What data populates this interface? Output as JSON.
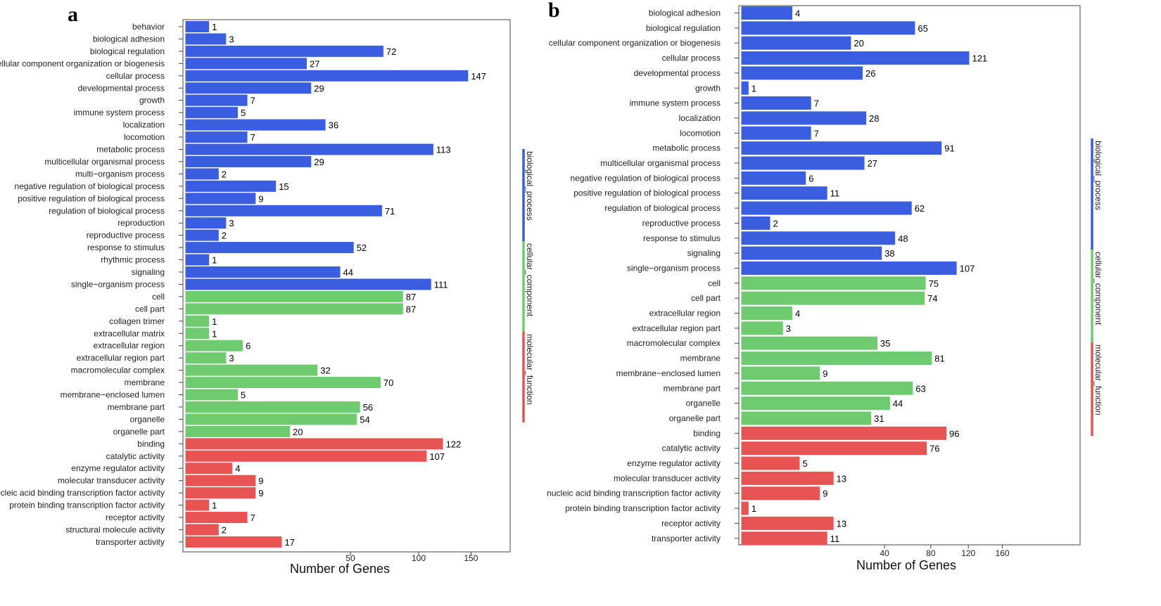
{
  "chart_data": [
    {
      "panel": "a",
      "type": "bar",
      "orientation": "horizontal",
      "xlabel": "Number of Genes",
      "x_ticks": [
        50,
        100,
        150
      ],
      "groups": [
        {
          "name": "biological_process",
          "color": "#3b5ee0",
          "categories": [
            "behavior",
            "biological adhesion",
            "biological regulation",
            "cellular component organization or biogenesis",
            "cellular process",
            "developmental process",
            "growth",
            "immune system process",
            "localization",
            "locomotion",
            "metabolic process",
            "multicellular organismal process",
            "multi−organism process",
            "negative regulation of biological process",
            "positive regulation of biological process",
            "regulation of biological process",
            "reproduction",
            "reproductive process",
            "response to stimulus",
            "rhythmic process",
            "signaling",
            "single−organism process"
          ],
          "values": [
            1,
            3,
            72,
            27,
            147,
            29,
            7,
            5,
            36,
            7,
            113,
            29,
            2,
            15,
            9,
            71,
            3,
            2,
            52,
            1,
            44,
            111
          ]
        },
        {
          "name": "cellular_component",
          "color": "#6fcb6f",
          "categories": [
            "cell",
            "cell part",
            "collagen trimer",
            "extracellular matrix",
            "extracellular region",
            "extracellular region part",
            "macromolecular complex",
            "membrane",
            "membrane−enclosed lumen",
            "membrane part",
            "organelle",
            "organelle part"
          ],
          "values": [
            87,
            87,
            1,
            1,
            6,
            3,
            32,
            70,
            5,
            56,
            54,
            20
          ]
        },
        {
          "name": "molecular_function",
          "color": "#e85454",
          "categories": [
            "binding",
            "catalytic activity",
            "enzyme regulator activity",
            "molecular transducer activity",
            "nucleic acid binding transcription factor activity",
            "protein binding transcription factor activity",
            "receptor activity",
            "structural molecule activity",
            "transporter activity"
          ],
          "values": [
            122,
            107,
            4,
            9,
            9,
            1,
            7,
            2,
            17
          ]
        }
      ]
    },
    {
      "panel": "b",
      "type": "bar",
      "orientation": "horizontal",
      "xlabel": "Number of Genes",
      "x_ticks": [
        40,
        80,
        120,
        160
      ],
      "groups": [
        {
          "name": "biological_process",
          "color": "#3b5ee0",
          "categories": [
            "biological adhesion",
            "biological regulation",
            "cellular component organization or biogenesis",
            "cellular process",
            "developmental process",
            "growth",
            "immune system process",
            "localization",
            "locomotion",
            "metabolic process",
            "multicellular organismal process",
            "negative regulation of biological process",
            "positive regulation of biological process",
            "regulation of biological process",
            "reproductive process",
            "response to stimulus",
            "signaling",
            "single−organism process"
          ],
          "values": [
            4,
            65,
            20,
            121,
            26,
            1,
            7,
            28,
            7,
            91,
            27,
            6,
            11,
            62,
            2,
            48,
            38,
            107
          ]
        },
        {
          "name": "cellular_component",
          "color": "#6fcb6f",
          "categories": [
            "cell",
            "cell part",
            "extracellular region",
            "extracellular region part",
            "macromolecular complex",
            "membrane",
            "membrane−enclosed lumen",
            "membrane part",
            "organelle",
            "organelle part"
          ],
          "values": [
            75,
            74,
            4,
            3,
            35,
            81,
            9,
            63,
            44,
            31
          ]
        },
        {
          "name": "molecular_function",
          "color": "#e85454",
          "categories": [
            "binding",
            "catalytic activity",
            "enzyme regulator activity",
            "molecular transducer activity",
            "nucleic acid binding transcription factor activity",
            "protein binding transcription factor activity",
            "receptor activity",
            "transporter activity"
          ],
          "values": [
            96,
            76,
            5,
            13,
            9,
            1,
            13,
            11
          ]
        }
      ]
    }
  ]
}
